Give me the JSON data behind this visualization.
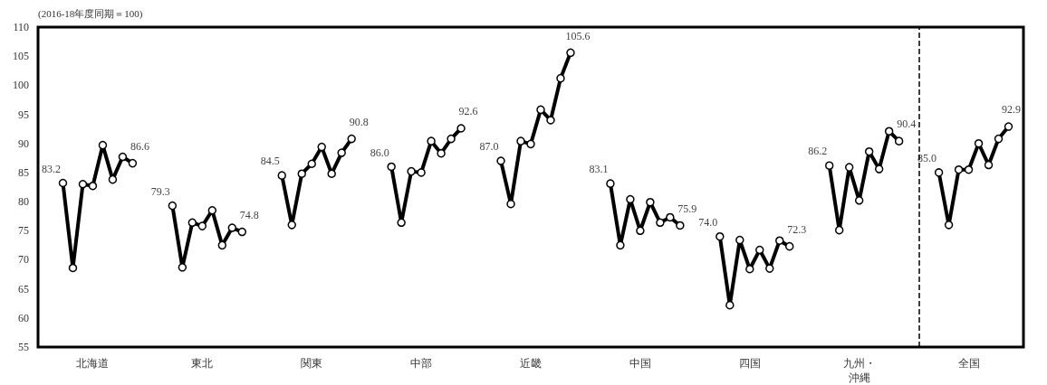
{
  "chart_data": {
    "type": "line",
    "ylabel": "(2016-18年度同期＝100)",
    "categories": [
      null,
      null,
      null,
      null,
      null,
      "北海道",
      null,
      null,
      null,
      null,
      null,
      null,
      null,
      null,
      null,
      null,
      "東北",
      null,
      null,
      null,
      null,
      null,
      null,
      null,
      null,
      null,
      null,
      "関東",
      null,
      null,
      null,
      null,
      null,
      null,
      null,
      null,
      null,
      null,
      "中部",
      null,
      null,
      null,
      null,
      null,
      null,
      null,
      null,
      null,
      null,
      "近畿",
      null,
      null,
      null,
      null,
      null,
      null,
      null,
      null,
      null,
      null,
      "中国",
      null,
      null,
      null,
      null,
      null,
      null,
      null,
      null,
      null,
      null,
      "四国",
      null,
      null,
      null,
      null,
      null,
      null,
      null,
      null,
      null,
      null,
      "九州・沖縄",
      null,
      null,
      null,
      null,
      null,
      null,
      null,
      null,
      null,
      null,
      "全国",
      null,
      null,
      null,
      null,
      null
    ],
    "ylim": [
      55,
      110
    ],
    "yticks": [
      55,
      60,
      65,
      70,
      75,
      80,
      85,
      90,
      95,
      100,
      105,
      110
    ],
    "grid": false,
    "marker": "circle",
    "line_style": "solid",
    "series": [
      {
        "color": "#000000",
        "values": [
          null,
          null,
          83.2,
          68.6,
          83.0,
          82.7,
          89.7,
          83.8,
          87.7,
          86.6,
          null,
          null,
          null,
          null,
          null,
          null,
          null,
          null,
          null,
          null,
          null,
          null,
          null,
          null,
          null,
          null,
          null,
          null,
          null,
          null,
          null,
          null,
          null,
          null,
          null,
          null,
          null,
          null,
          null,
          null,
          null,
          null,
          null,
          null,
          null,
          null,
          null,
          null,
          null,
          null,
          null,
          null,
          null,
          null,
          null,
          null,
          null,
          null,
          null,
          null,
          null,
          null,
          null,
          null,
          null,
          null,
          null,
          null,
          null,
          null,
          null,
          null,
          null,
          null,
          null,
          null,
          null,
          null,
          null,
          null,
          null,
          null,
          null,
          null,
          null,
          null,
          null,
          null,
          null,
          null,
          null,
          null,
          null,
          null,
          null,
          null,
          null,
          null,
          null
        ],
        "value_labels": [
          null,
          null,
          "83.2",
          null,
          null,
          null,
          null,
          null,
          null,
          "86.6",
          null,
          null,
          null,
          null,
          null,
          null,
          null,
          null,
          null,
          null,
          null,
          null,
          null,
          null,
          null,
          null,
          null,
          null,
          null,
          null,
          null,
          null,
          null,
          null,
          null,
          null,
          null,
          null,
          null,
          null,
          null,
          null,
          null,
          null,
          null,
          null,
          null,
          null,
          null,
          null,
          null,
          null,
          null,
          null,
          null,
          null,
          null,
          null,
          null,
          null,
          null,
          null,
          null,
          null,
          null,
          null,
          null,
          null,
          null,
          null,
          null,
          null,
          null,
          null,
          null,
          null,
          null,
          null,
          null,
          null,
          null,
          null,
          null,
          null,
          null,
          null,
          null,
          null,
          null,
          null,
          null,
          null,
          null,
          null,
          null,
          null,
          null,
          null,
          null
        ]
      },
      {
        "color": "#000000",
        "values": [
          null,
          null,
          null,
          null,
          null,
          null,
          null,
          null,
          null,
          null,
          null,
          null,
          null,
          79.3,
          68.7,
          76.4,
          75.8,
          78.5,
          72.5,
          75.5,
          74.8,
          null,
          null,
          null,
          null,
          null,
          null,
          null,
          null,
          null,
          null,
          null,
          null,
          null,
          null,
          null,
          null,
          null,
          null,
          null,
          null,
          null,
          null,
          null,
          null,
          null,
          null,
          null,
          null,
          null,
          null,
          null,
          null,
          null,
          null,
          null,
          null,
          null,
          null,
          null,
          null,
          null,
          null,
          null,
          null,
          null,
          null,
          null,
          null,
          null,
          null,
          null,
          null,
          null,
          null,
          null,
          null,
          null,
          null,
          null,
          null,
          null,
          null,
          null,
          null,
          null,
          null,
          null,
          null,
          null,
          null,
          null,
          null,
          null,
          null,
          null,
          null,
          null,
          null
        ],
        "value_labels": [
          null,
          null,
          null,
          null,
          null,
          null,
          null,
          null,
          null,
          null,
          null,
          null,
          null,
          "79.3",
          null,
          null,
          null,
          null,
          null,
          null,
          "74.8",
          null,
          null,
          null,
          null,
          null,
          null,
          null,
          null,
          null,
          null,
          null,
          null,
          null,
          null,
          null,
          null,
          null,
          null,
          null,
          null,
          null,
          null,
          null,
          null,
          null,
          null,
          null,
          null,
          null,
          null,
          null,
          null,
          null,
          null,
          null,
          null,
          null,
          null,
          null,
          null,
          null,
          null,
          null,
          null,
          null,
          null,
          null,
          null,
          null,
          null,
          null,
          null,
          null,
          null,
          null,
          null,
          null,
          null,
          null,
          null,
          null,
          null,
          null,
          null,
          null,
          null,
          null,
          null,
          null,
          null,
          null,
          null,
          null,
          null,
          null,
          null,
          null,
          null
        ]
      },
      {
        "color": "#000000",
        "values": [
          null,
          null,
          null,
          null,
          null,
          null,
          null,
          null,
          null,
          null,
          null,
          null,
          null,
          null,
          null,
          null,
          null,
          null,
          null,
          null,
          null,
          null,
          null,
          null,
          84.5,
          76.0,
          84.8,
          86.5,
          89.4,
          84.8,
          88.4,
          90.8,
          null,
          null,
          null,
          null,
          null,
          null,
          null,
          null,
          null,
          null,
          null,
          null,
          null,
          null,
          null,
          null,
          null,
          null,
          null,
          null,
          null,
          null,
          null,
          null,
          null,
          null,
          null,
          null,
          null,
          null,
          null,
          null,
          null,
          null,
          null,
          null,
          null,
          null,
          null,
          null,
          null,
          null,
          null,
          null,
          null,
          null,
          null,
          null,
          null,
          null,
          null,
          null,
          null,
          null,
          null,
          null,
          null,
          null,
          null,
          null,
          null,
          null,
          null,
          null,
          null,
          null,
          null
        ],
        "value_labels": [
          null,
          null,
          null,
          null,
          null,
          null,
          null,
          null,
          null,
          null,
          null,
          null,
          null,
          null,
          null,
          null,
          null,
          null,
          null,
          null,
          null,
          null,
          null,
          null,
          "84.5",
          null,
          null,
          null,
          null,
          null,
          null,
          "90.8",
          null,
          null,
          null,
          null,
          null,
          null,
          null,
          null,
          null,
          null,
          null,
          null,
          null,
          null,
          null,
          null,
          null,
          null,
          null,
          null,
          null,
          null,
          null,
          null,
          null,
          null,
          null,
          null,
          null,
          null,
          null,
          null,
          null,
          null,
          null,
          null,
          null,
          null,
          null,
          null,
          null,
          null,
          null,
          null,
          null,
          null,
          null,
          null,
          null,
          null,
          null,
          null,
          null,
          null,
          null,
          null,
          null,
          null,
          null,
          null,
          null,
          null,
          null,
          null,
          null,
          null,
          null
        ]
      },
      {
        "color": "#000000",
        "values": [
          null,
          null,
          null,
          null,
          null,
          null,
          null,
          null,
          null,
          null,
          null,
          null,
          null,
          null,
          null,
          null,
          null,
          null,
          null,
          null,
          null,
          null,
          null,
          null,
          null,
          null,
          null,
          null,
          null,
          null,
          null,
          null,
          null,
          null,
          null,
          86.0,
          76.4,
          85.2,
          85.0,
          90.4,
          88.3,
          90.8,
          92.6,
          null,
          null,
          null,
          null,
          null,
          null,
          null,
          null,
          null,
          null,
          null,
          null,
          null,
          null,
          null,
          null,
          null,
          null,
          null,
          null,
          null,
          null,
          null,
          null,
          null,
          null,
          null,
          null,
          null,
          null,
          null,
          null,
          null,
          null,
          null,
          null,
          null,
          null,
          null,
          null,
          null,
          null,
          null,
          null,
          null,
          null,
          null,
          null,
          null,
          null,
          null,
          null,
          null,
          null,
          null,
          null
        ],
        "value_labels": [
          null,
          null,
          null,
          null,
          null,
          null,
          null,
          null,
          null,
          null,
          null,
          null,
          null,
          null,
          null,
          null,
          null,
          null,
          null,
          null,
          null,
          null,
          null,
          null,
          null,
          null,
          null,
          null,
          null,
          null,
          null,
          null,
          null,
          null,
          null,
          "86.0",
          null,
          null,
          null,
          null,
          null,
          null,
          "92.6",
          null,
          null,
          null,
          null,
          null,
          null,
          null,
          null,
          null,
          null,
          null,
          null,
          null,
          null,
          null,
          null,
          null,
          null,
          null,
          null,
          null,
          null,
          null,
          null,
          null,
          null,
          null,
          null,
          null,
          null,
          null,
          null,
          null,
          null,
          null,
          null,
          null,
          null,
          null,
          null,
          null,
          null,
          null,
          null,
          null,
          null,
          null,
          null,
          null,
          null,
          null,
          null,
          null,
          null,
          null,
          null
        ]
      },
      {
        "color": "#000000",
        "values": [
          null,
          null,
          null,
          null,
          null,
          null,
          null,
          null,
          null,
          null,
          null,
          null,
          null,
          null,
          null,
          null,
          null,
          null,
          null,
          null,
          null,
          null,
          null,
          null,
          null,
          null,
          null,
          null,
          null,
          null,
          null,
          null,
          null,
          null,
          null,
          null,
          null,
          null,
          null,
          null,
          null,
          null,
          null,
          null,
          null,
          null,
          87.0,
          79.6,
          90.4,
          89.9,
          95.8,
          94.0,
          101.2,
          105.6,
          null,
          null,
          null,
          null,
          null,
          null,
          null,
          null,
          null,
          null,
          null,
          null,
          null,
          null,
          null,
          null,
          null,
          null,
          null,
          null,
          null,
          null,
          null,
          null,
          null,
          null,
          null,
          null,
          null,
          null,
          null,
          null,
          null,
          null,
          null,
          null,
          null,
          null,
          null,
          null,
          null,
          null,
          null,
          null,
          null
        ],
        "value_labels": [
          null,
          null,
          null,
          null,
          null,
          null,
          null,
          null,
          null,
          null,
          null,
          null,
          null,
          null,
          null,
          null,
          null,
          null,
          null,
          null,
          null,
          null,
          null,
          null,
          null,
          null,
          null,
          null,
          null,
          null,
          null,
          null,
          null,
          null,
          null,
          null,
          null,
          null,
          null,
          null,
          null,
          null,
          null,
          null,
          null,
          null,
          "87.0",
          null,
          null,
          null,
          null,
          null,
          null,
          "105.6",
          null,
          null,
          null,
          null,
          null,
          null,
          null,
          null,
          null,
          null,
          null,
          null,
          null,
          null,
          null,
          null,
          null,
          null,
          null,
          null,
          null,
          null,
          null,
          null,
          null,
          null,
          null,
          null,
          null,
          null,
          null,
          null,
          null,
          null,
          null,
          null,
          null,
          null,
          null,
          null,
          null,
          null,
          null,
          null,
          null
        ]
      },
      {
        "color": "#000000",
        "values": [
          null,
          null,
          null,
          null,
          null,
          null,
          null,
          null,
          null,
          null,
          null,
          null,
          null,
          null,
          null,
          null,
          null,
          null,
          null,
          null,
          null,
          null,
          null,
          null,
          null,
          null,
          null,
          null,
          null,
          null,
          null,
          null,
          null,
          null,
          null,
          null,
          null,
          null,
          null,
          null,
          null,
          null,
          null,
          null,
          null,
          null,
          null,
          null,
          null,
          null,
          null,
          null,
          null,
          null,
          null,
          null,
          null,
          83.1,
          72.5,
          80.4,
          75.0,
          79.9,
          76.4,
          77.3,
          75.9,
          null,
          null,
          null,
          null,
          null,
          null,
          null,
          null,
          null,
          null,
          null,
          null,
          null,
          null,
          null,
          null,
          null,
          null,
          null,
          null,
          null,
          null,
          null,
          null,
          null,
          null,
          null,
          null,
          null,
          null,
          null,
          null,
          null,
          null
        ],
        "value_labels": [
          null,
          null,
          null,
          null,
          null,
          null,
          null,
          null,
          null,
          null,
          null,
          null,
          null,
          null,
          null,
          null,
          null,
          null,
          null,
          null,
          null,
          null,
          null,
          null,
          null,
          null,
          null,
          null,
          null,
          null,
          null,
          null,
          null,
          null,
          null,
          null,
          null,
          null,
          null,
          null,
          null,
          null,
          null,
          null,
          null,
          null,
          null,
          null,
          null,
          null,
          null,
          null,
          null,
          null,
          null,
          null,
          null,
          "83.1",
          null,
          null,
          null,
          null,
          null,
          null,
          "75.9",
          null,
          null,
          null,
          null,
          null,
          null,
          null,
          null,
          null,
          null,
          null,
          null,
          null,
          null,
          null,
          null,
          null,
          null,
          null,
          null,
          null,
          null,
          null,
          null,
          null,
          null,
          null,
          null,
          null,
          null,
          null,
          null,
          null,
          null
        ]
      },
      {
        "color": "#000000",
        "values": [
          null,
          null,
          null,
          null,
          null,
          null,
          null,
          null,
          null,
          null,
          null,
          null,
          null,
          null,
          null,
          null,
          null,
          null,
          null,
          null,
          null,
          null,
          null,
          null,
          null,
          null,
          null,
          null,
          null,
          null,
          null,
          null,
          null,
          null,
          null,
          null,
          null,
          null,
          null,
          null,
          null,
          null,
          null,
          null,
          null,
          null,
          null,
          null,
          null,
          null,
          null,
          null,
          null,
          null,
          null,
          null,
          null,
          null,
          null,
          null,
          null,
          null,
          null,
          null,
          null,
          null,
          null,
          null,
          74.0,
          62.2,
          73.4,
          68.4,
          71.7,
          68.5,
          73.3,
          72.3,
          null,
          null,
          null,
          null,
          null,
          null,
          null,
          null,
          null,
          null,
          null,
          null,
          null,
          null,
          null,
          null,
          null,
          null,
          null,
          null,
          null,
          null,
          null
        ],
        "value_labels": [
          null,
          null,
          null,
          null,
          null,
          null,
          null,
          null,
          null,
          null,
          null,
          null,
          null,
          null,
          null,
          null,
          null,
          null,
          null,
          null,
          null,
          null,
          null,
          null,
          null,
          null,
          null,
          null,
          null,
          null,
          null,
          null,
          null,
          null,
          null,
          null,
          null,
          null,
          null,
          null,
          null,
          null,
          null,
          null,
          null,
          null,
          null,
          null,
          null,
          null,
          null,
          null,
          null,
          null,
          null,
          null,
          null,
          null,
          null,
          null,
          null,
          null,
          null,
          null,
          null,
          null,
          null,
          null,
          "74.0",
          null,
          null,
          null,
          null,
          null,
          null,
          "72.3",
          null,
          null,
          null,
          null,
          null,
          null,
          null,
          null,
          null,
          null,
          null,
          null,
          null,
          null,
          null,
          null,
          null,
          null,
          null,
          null,
          null,
          null,
          null
        ]
      },
      {
        "color": "#000000",
        "values": [
          null,
          null,
          null,
          null,
          null,
          null,
          null,
          null,
          null,
          null,
          null,
          null,
          null,
          null,
          null,
          null,
          null,
          null,
          null,
          null,
          null,
          null,
          null,
          null,
          null,
          null,
          null,
          null,
          null,
          null,
          null,
          null,
          null,
          null,
          null,
          null,
          null,
          null,
          null,
          null,
          null,
          null,
          null,
          null,
          null,
          null,
          null,
          null,
          null,
          null,
          null,
          null,
          null,
          null,
          null,
          null,
          null,
          null,
          null,
          null,
          null,
          null,
          null,
          null,
          null,
          null,
          null,
          null,
          null,
          null,
          null,
          null,
          null,
          null,
          null,
          null,
          null,
          null,
          null,
          86.2,
          75.1,
          85.9,
          80.2,
          88.6,
          85.6,
          92.1,
          90.4,
          null,
          null,
          null,
          null,
          null,
          null,
          null,
          null,
          null,
          null,
          null,
          null
        ],
        "value_labels": [
          null,
          null,
          null,
          null,
          null,
          null,
          null,
          null,
          null,
          null,
          null,
          null,
          null,
          null,
          null,
          null,
          null,
          null,
          null,
          null,
          null,
          null,
          null,
          null,
          null,
          null,
          null,
          null,
          null,
          null,
          null,
          null,
          null,
          null,
          null,
          null,
          null,
          null,
          null,
          null,
          null,
          null,
          null,
          null,
          null,
          null,
          null,
          null,
          null,
          null,
          null,
          null,
          null,
          null,
          null,
          null,
          null,
          null,
          null,
          null,
          null,
          null,
          null,
          null,
          null,
          null,
          null,
          null,
          null,
          null,
          null,
          null,
          null,
          null,
          null,
          null,
          null,
          null,
          null,
          "86.2",
          null,
          null,
          null,
          null,
          null,
          null,
          "90.4",
          null,
          null,
          null,
          null,
          null,
          null,
          null,
          null,
          null,
          null,
          null,
          null
        ]
      },
      {
        "color": "#000000",
        "values": [
          null,
          null,
          null,
          null,
          null,
          null,
          null,
          null,
          null,
          null,
          null,
          null,
          null,
          null,
          null,
          null,
          null,
          null,
          null,
          null,
          null,
          null,
          null,
          null,
          null,
          null,
          null,
          null,
          null,
          null,
          null,
          null,
          null,
          null,
          null,
          null,
          null,
          null,
          null,
          null,
          null,
          null,
          null,
          null,
          null,
          null,
          null,
          null,
          null,
          null,
          null,
          null,
          null,
          null,
          null,
          null,
          null,
          null,
          null,
          null,
          null,
          null,
          null,
          null,
          null,
          null,
          null,
          null,
          null,
          null,
          null,
          null,
          null,
          null,
          null,
          null,
          null,
          null,
          null,
          null,
          null,
          null,
          null,
          null,
          null,
          null,
          null,
          null,
          null,
          null,
          85.0,
          76.0,
          85.5,
          85.5,
          90.0,
          86.3,
          90.8,
          92.9,
          null
        ],
        "value_labels": [
          null,
          null,
          null,
          null,
          null,
          null,
          null,
          null,
          null,
          null,
          null,
          null,
          null,
          null,
          null,
          null,
          null,
          null,
          null,
          null,
          null,
          null,
          null,
          null,
          null,
          null,
          null,
          null,
          null,
          null,
          null,
          null,
          null,
          null,
          null,
          null,
          null,
          null,
          null,
          null,
          null,
          null,
          null,
          null,
          null,
          null,
          null,
          null,
          null,
          null,
          null,
          null,
          null,
          null,
          null,
          null,
          null,
          null,
          null,
          null,
          null,
          null,
          null,
          null,
          null,
          null,
          null,
          null,
          null,
          null,
          null,
          null,
          null,
          null,
          null,
          null,
          null,
          null,
          null,
          null,
          null,
          null,
          null,
          null,
          null,
          null,
          null,
          null,
          null,
          null,
          "85.0",
          null,
          null,
          null,
          null,
          null,
          null,
          "92.9",
          null
        ]
      }
    ]
  }
}
